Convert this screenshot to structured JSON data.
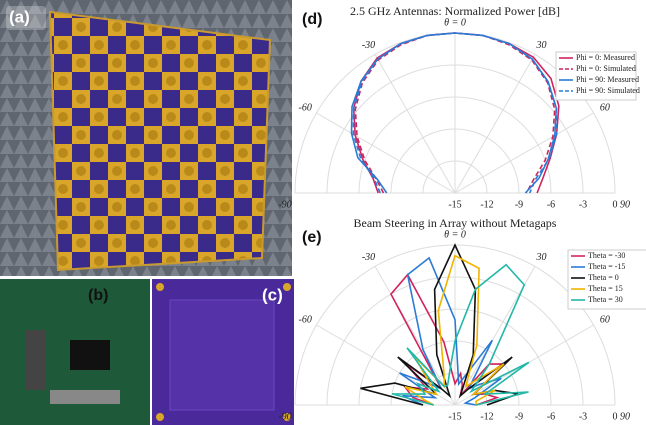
{
  "panels": {
    "a": "(a)",
    "b": "(b)",
    "c": "(c)",
    "d": "(d)",
    "e": "(e)"
  },
  "chart_data": [
    {
      "type": "polar",
      "title": "2.5 GHz Antennas: Normalized Power [dB]",
      "x": [
        -90,
        -80,
        -70,
        -60,
        -50,
        -40,
        -30,
        -20,
        -10,
        0,
        10,
        20,
        30,
        40,
        50,
        60,
        70,
        80,
        90
      ],
      "xticks": [
        -90,
        -60,
        -30,
        {
          "value": 0,
          "label": "θ = 0"
        },
        30,
        60,
        90
      ],
      "rlim": [
        -15,
        0
      ],
      "rticks": [
        -15,
        -12,
        -9,
        -6,
        -3,
        0
      ],
      "grid": true,
      "legend": "upper-right",
      "series": [
        {
          "name": "Phi = 0: Measured",
          "color": "#d0245e",
          "dashed": false,
          "values": [
            -7.8,
            -7.2,
            -5.8,
            -4.2,
            -2.6,
            -1.3,
            -0.4,
            -0.1,
            0,
            0,
            0,
            -0.1,
            -0.3,
            -1.0,
            -2.3,
            -4.0,
            -5.5,
            -6.6,
            -7.3
          ]
        },
        {
          "name": "Phi = 0: Simulated",
          "color": "#d0245e",
          "dashed": true,
          "values": [
            -8.3,
            -7.5,
            -6.0,
            -4.4,
            -2.8,
            -1.5,
            -0.6,
            -0.2,
            0,
            0,
            0,
            -0.2,
            -0.6,
            -1.5,
            -2.8,
            -4.4,
            -6.0,
            -7.5,
            -8.3
          ]
        },
        {
          "name": "Phi = 90: Measured",
          "color": "#2b7bd6",
          "dashed": false,
          "values": [
            -8.6,
            -7.6,
            -5.3,
            -3.8,
            -2.4,
            -1.3,
            -0.5,
            -0.1,
            0,
            0,
            0,
            -0.1,
            -0.5,
            -1.4,
            -2.6,
            -4.2,
            -5.7,
            -7.0,
            -8.4
          ]
        },
        {
          "name": "Phi = 90: Simulated",
          "color": "#2b7bd6",
          "dashed": true,
          "values": [
            -8.0,
            -7.3,
            -5.6,
            -4.0,
            -2.6,
            -1.4,
            -0.5,
            -0.1,
            0,
            0,
            0,
            -0.1,
            -0.5,
            -1.4,
            -2.6,
            -4.0,
            -5.6,
            -7.3,
            -8.0
          ]
        }
      ]
    },
    {
      "type": "polar",
      "title": "Beam Steering in Array without Metagaps",
      "x": [
        -90,
        -80,
        -70,
        -60,
        -50,
        -40,
        -30,
        -20,
        -10,
        0,
        10,
        20,
        30,
        40,
        50,
        60,
        70,
        80,
        90
      ],
      "xticks": [
        -90,
        -60,
        -30,
        {
          "value": 0,
          "label": "θ = 0"
        },
        30,
        60,
        90
      ],
      "rlim": [
        -15,
        0
      ],
      "rticks": [
        -15,
        -12,
        -9,
        -6,
        -3,
        0
      ],
      "grid": true,
      "legend": "upper-right",
      "series": [
        {
          "name": "Theta = -30",
          "color": "#d0245e",
          "dashed": false,
          "values": [
            -13,
            -11,
            -10,
            -12,
            -9,
            -13,
            -3,
            -2,
            -9,
            -13,
            -12,
            -13,
            -14,
            -10,
            -9,
            -13,
            -12,
            -11,
            -13
          ]
        },
        {
          "name": "Theta = -15",
          "color": "#2b7bd6",
          "dashed": false,
          "values": [
            -12,
            -10,
            -13,
            -9,
            -12,
            -13,
            -9,
            -2,
            -1,
            -7,
            -13,
            -12,
            -8,
            -13,
            -12,
            -10,
            -13,
            -14,
            -13
          ]
        },
        {
          "name": "Theta = 0",
          "color": "#111111",
          "dashed": false,
          "values": [
            -12,
            -6,
            -9,
            -13,
            -8,
            -13,
            -14,
            -10,
            -4,
            0,
            -4,
            -10,
            -14,
            -13,
            -8,
            -13,
            -11,
            -9,
            -12
          ]
        },
        {
          "name": "Theta = 15",
          "color": "#f0b400",
          "dashed": false,
          "values": [
            -13,
            -12,
            -10,
            -13,
            -12,
            -9,
            -13,
            -12,
            -6,
            -1,
            -2,
            -9,
            -13,
            -12,
            -9,
            -13,
            -11,
            -13,
            -13
          ]
        },
        {
          "name": "Theta = 30",
          "color": "#22b8a8",
          "dashed": false,
          "values": [
            -13,
            -9,
            -12,
            -11,
            -13,
            -8,
            -13,
            -13,
            -12,
            -9,
            -4,
            -1,
            -2,
            -10,
            -13,
            -7,
            -12,
            -8,
            -13
          ]
        }
      ]
    }
  ]
}
